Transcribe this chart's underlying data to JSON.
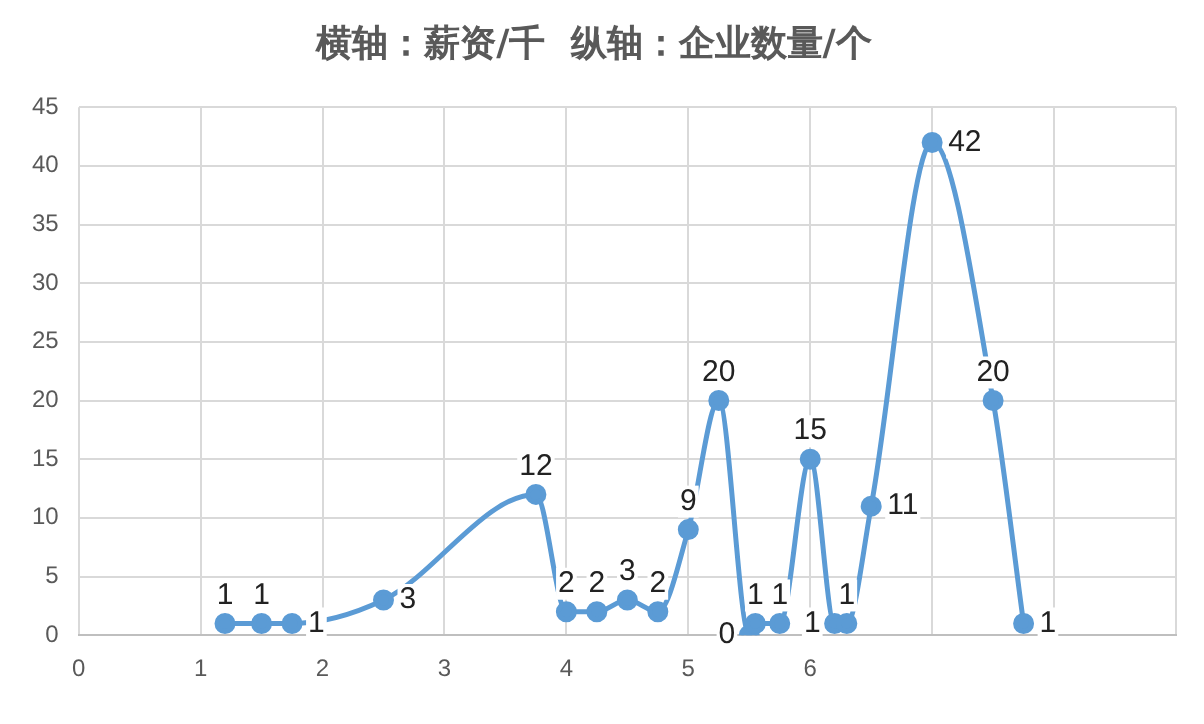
{
  "chart_data": {
    "type": "line",
    "title": "横轴：薪资/千  纵轴：企业数量/个",
    "x": [
      1.2,
      1.5,
      1.75,
      2.5,
      3.75,
      4,
      4.25,
      4.5,
      4.75,
      5,
      5.25,
      5.5,
      5.55,
      5.75,
      6,
      6.2,
      6.3,
      6.5,
      7,
      7.5,
      7.75
    ],
    "series": [
      {
        "color": "#5b9bd5",
        "values": [
          1,
          1,
          1,
          3,
          12,
          2,
          2,
          3,
          2,
          9,
          20,
          0,
          1,
          1,
          15,
          1,
          1,
          11,
          42,
          20,
          1
        ]
      }
    ],
    "xlim": [
      0,
      9
    ],
    "xticks": [
      0,
      1,
      2,
      3,
      4,
      5,
      6,
      {
        "value": 7,
        "label": null
      },
      {
        "value": 8,
        "label": null
      },
      {
        "value": 9,
        "label": null
      }
    ],
    "ylim": [
      0,
      45
    ],
    "yticks": [
      0,
      5,
      10,
      15,
      20,
      25,
      30,
      35,
      40,
      45
    ],
    "grid": true,
    "legend": false,
    "marker": "circle",
    "line_style": "solid",
    "data_labels": true
  }
}
